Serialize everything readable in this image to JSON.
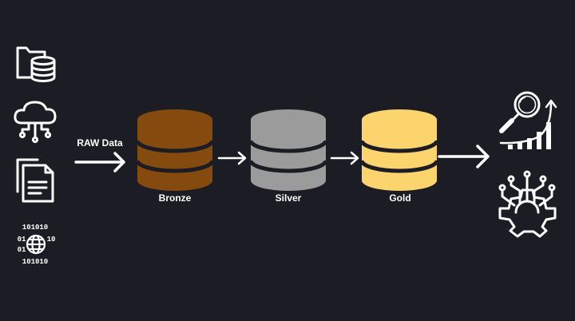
{
  "background": "#1c1d24",
  "line_color": "#ffffff",
  "sources": [
    {
      "icon": "folder-database-icon"
    },
    {
      "icon": "cloud-network-icon"
    },
    {
      "icon": "documents-icon"
    },
    {
      "icon": "binary-globe-icon"
    }
  ],
  "input_label": "RAW Data",
  "binary_rows": [
    "101010",
    "01",
    "10",
    "01",
    "101010"
  ],
  "layers": [
    {
      "label": "Bronze",
      "color": "#854a0e",
      "band_color": "#1c1d24"
    },
    {
      "label": "Silver",
      "color": "#9b9b9b",
      "band_color": "#1c1d24"
    },
    {
      "label": "Gold",
      "color": "#fcd46d",
      "band_color": "#1c1d24"
    }
  ],
  "outputs": [
    {
      "icon": "analytics-search-icon"
    },
    {
      "icon": "gear-circuit-icon"
    }
  ]
}
